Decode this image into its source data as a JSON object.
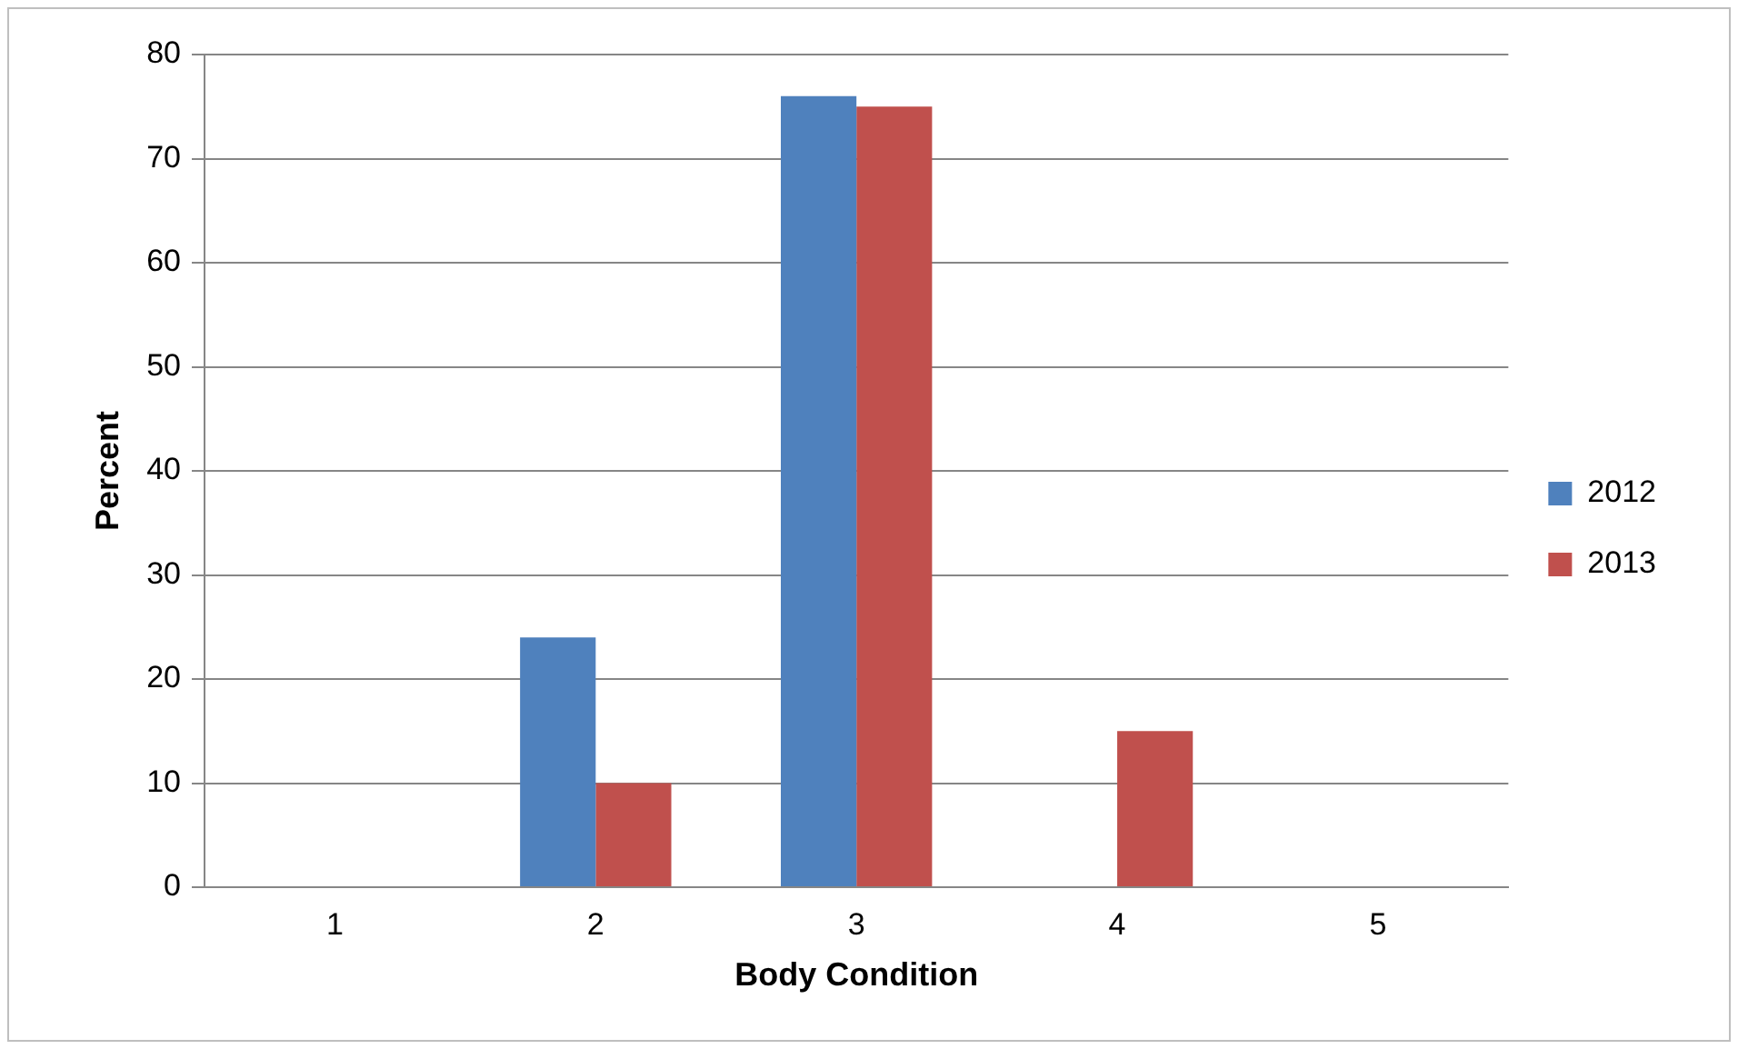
{
  "chart_data": {
    "type": "bar",
    "xlabel": "Body Condition",
    "ylabel": "Percent",
    "categories": [
      "1",
      "2",
      "3",
      "4",
      "5"
    ],
    "series": [
      {
        "name": "2012",
        "color": "#4f81bd",
        "values": [
          0,
          24,
          76,
          0,
          0
        ]
      },
      {
        "name": "2013",
        "color": "#c0504d",
        "values": [
          0,
          10,
          75,
          15,
          0
        ]
      }
    ],
    "ylim": [
      0,
      80
    ],
    "yticks": [
      0,
      10,
      20,
      30,
      40,
      50,
      60,
      70,
      80
    ],
    "grid": "y",
    "legend": "right"
  }
}
